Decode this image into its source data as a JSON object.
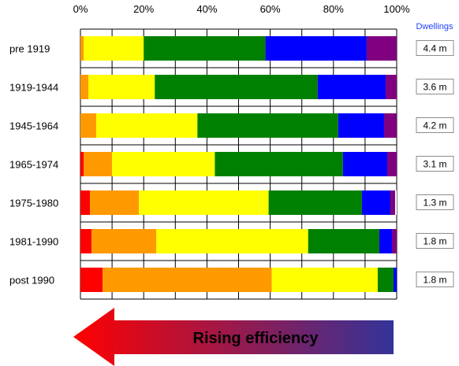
{
  "chart_data": {
    "type": "bar",
    "orientation": "horizontal",
    "stacked": true,
    "x_tick_labels": [
      "0%",
      "20%",
      "40%",
      "60%",
      "80%",
      "100%"
    ],
    "xlim": [
      0,
      100
    ],
    "categories": [
      "pre 1919",
      "1919-1944",
      "1945-1964",
      "1965-1974",
      "1975-1980",
      "1981-1990",
      "post 1990"
    ],
    "series": [
      {
        "color": "#ff0000",
        "values": [
          0,
          0,
          0,
          1,
          3,
          3.5,
          7
        ]
      },
      {
        "color": "#ff9900",
        "values": [
          1,
          2.5,
          5,
          9,
          15.5,
          20.5,
          53.5
        ]
      },
      {
        "color": "#ffff00",
        "values": [
          19,
          21,
          32,
          32.5,
          41,
          48,
          33.5
        ]
      },
      {
        "color": "#008000",
        "values": [
          38.5,
          51.5,
          44.5,
          40.5,
          29.5,
          22.5,
          5
        ]
      },
      {
        "color": "#0000ff",
        "values": [
          32,
          21.5,
          14.5,
          14,
          9,
          4,
          1
        ]
      },
      {
        "color": "#800080",
        "values": [
          9.5,
          3.5,
          4,
          3,
          1.5,
          1.5,
          0
        ]
      }
    ],
    "grid": true,
    "secondary_labels": {
      "title": "Dwellings",
      "values": [
        "4.4 m",
        "3.6 m",
        "4.2 m",
        "3.1 m",
        "1.3 m",
        "1.8 m",
        "1.8 m"
      ]
    },
    "annotation": {
      "text": "Rising efficiency",
      "gradient": [
        "#ff0000",
        "#333399"
      ]
    }
  }
}
